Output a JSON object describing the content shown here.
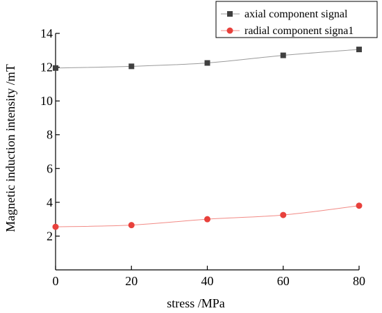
{
  "chart_data": {
    "type": "line",
    "title": "",
    "xlabel": "stress /MPa",
    "ylabel": "Magnetic induction intensity /mT",
    "xlim": [
      0,
      80
    ],
    "ylim": [
      0,
      14
    ],
    "x_ticks": [
      0,
      20,
      40,
      60,
      80
    ],
    "y_ticks": [
      2,
      4,
      6,
      8,
      10,
      12,
      14
    ],
    "grid": false,
    "legend_position": "top-right",
    "x": [
      0,
      20,
      40,
      60,
      80
    ],
    "series": [
      {
        "name": "axial component signal",
        "marker": "square",
        "color": "#404040",
        "line_color": "#9a9a9a",
        "values": [
          11.95,
          12.05,
          12.25,
          12.7,
          13.05
        ]
      },
      {
        "name": "radial component  signa1",
        "marker": "circle",
        "color": "#e8413c",
        "line_color": "#f28a85",
        "values": [
          2.55,
          2.65,
          3.0,
          3.25,
          3.8
        ]
      }
    ]
  }
}
